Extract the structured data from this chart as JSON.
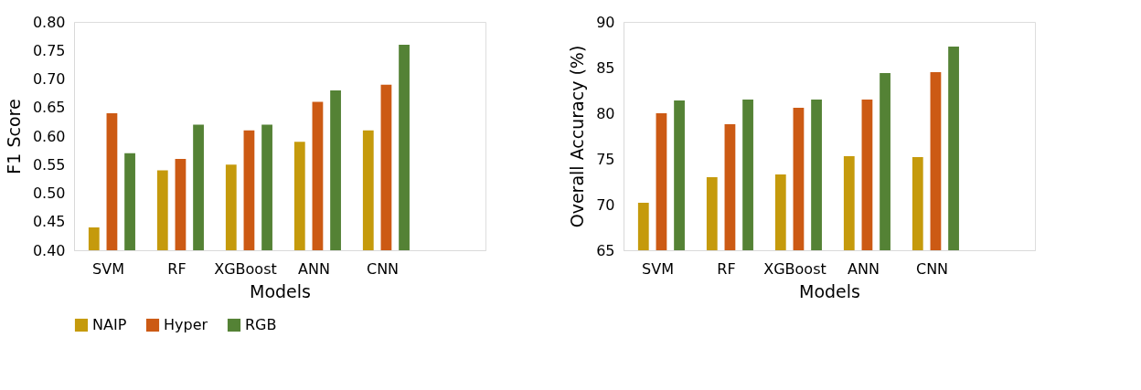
{
  "chart_data": [
    {
      "type": "bar",
      "xlabel": "Models",
      "ylabel": "F1 Score",
      "categories": [
        "SVM",
        "RF",
        "XGBoost",
        "ANN",
        "CNN",
        null
      ],
      "series": [
        {
          "name": "NAIP",
          "color": "#c59a0c",
          "values": [
            0.44,
            0.54,
            0.55,
            0.59,
            0.61,
            null
          ]
        },
        {
          "name": "Hyper",
          "color": "#cc5a14",
          "values": [
            0.64,
            0.56,
            0.61,
            0.66,
            0.69,
            null
          ]
        },
        {
          "name": "RGB",
          "color": "#548235",
          "values": [
            0.57,
            0.62,
            0.62,
            0.68,
            0.76,
            null
          ]
        }
      ],
      "ylim": [
        0.4,
        0.8
      ],
      "yticks": [
        {
          "value": 0.4,
          "label": "0.40"
        },
        {
          "value": 0.45,
          "label": "0.45"
        },
        {
          "value": 0.5,
          "label": "0.50"
        },
        {
          "value": 0.55,
          "label": "0.55"
        },
        {
          "value": 0.6,
          "label": "0.60"
        },
        {
          "value": 0.65,
          "label": "0.65"
        },
        {
          "value": 0.7,
          "label": "0.70"
        },
        {
          "value": 0.75,
          "label": "0.75"
        },
        {
          "value": 0.8,
          "label": "0.80"
        }
      ],
      "grid": false,
      "legend": "bottom"
    },
    {
      "type": "bar",
      "xlabel": "Models",
      "ylabel": "Overall Accuracy (%)",
      "categories": [
        "SVM",
        "RF",
        "XGBoost",
        "ANN",
        "CNN",
        null
      ],
      "series": [
        {
          "name": "NAIP",
          "color": "#c59a0c",
          "values": [
            70.2,
            73.0,
            73.3,
            75.3,
            75.2,
            null
          ]
        },
        {
          "name": "Hyper",
          "color": "#cc5a14",
          "values": [
            80.0,
            78.8,
            80.6,
            81.5,
            84.5,
            null
          ]
        },
        {
          "name": "RGB",
          "color": "#548235",
          "values": [
            81.4,
            81.5,
            81.5,
            84.4,
            87.3,
            null
          ]
        }
      ],
      "ylim": [
        65,
        90
      ],
      "yticks": [
        65,
        70,
        75,
        80,
        85,
        90
      ],
      "grid": false,
      "legend": "bottom"
    }
  ]
}
